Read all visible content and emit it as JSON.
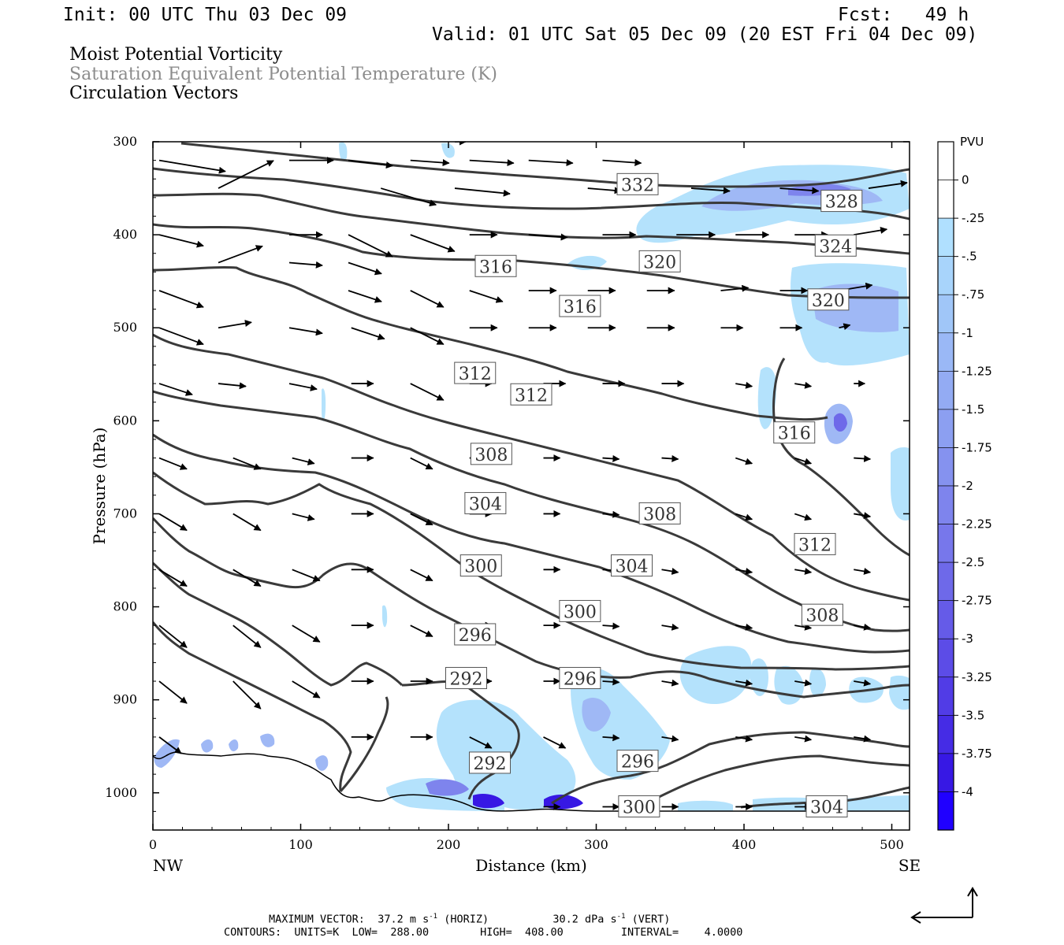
{
  "header": {
    "init": "Init: 00 UTC Thu 03 Dec 09",
    "fcst": "Fcst:   49 h",
    "valid": "Valid: 01 UTC Sat 05 Dec 09 (20 EST Fri 04 Dec 09)"
  },
  "fields": {
    "mpv": "Moist Potential Vorticity",
    "thetae": "Saturation Equivalent Potential Temperature (K)",
    "vectors": "Circulation Vectors"
  },
  "footer": {
    "max_vector_label": "MAXIMUM VECTOR:",
    "horiz_value": "37.2 m s",
    "horiz_exp": "-1",
    "horiz_tag": "(HORIZ)",
    "vert_value": "30.2 dPa s",
    "vert_exp": "-1",
    "vert_tag": "(VERT)",
    "contours": "CONTOURS:  UNITS=K  LOW=  288.00        HIGH=  408.00         INTERVAL=    4.0000"
  },
  "chart_data": {
    "type": "contour",
    "xlabel": "Distance (km)",
    "ylabel": "Pressure (hPa)",
    "x_endpoints": {
      "left": "NW",
      "right": "SE"
    },
    "xlim": [
      0,
      512
    ],
    "ylim": [
      1040,
      300
    ],
    "x_ticks": [
      0,
      100,
      200,
      300,
      400,
      500
    ],
    "y_ticks": [
      300,
      400,
      500,
      600,
      700,
      800,
      900,
      1000
    ],
    "contour_labels": [
      {
        "text": "332",
        "x": 328,
        "p": 346
      },
      {
        "text": "328",
        "x": 466,
        "p": 364
      },
      {
        "text": "324",
        "x": 462,
        "p": 412
      },
      {
        "text": "320",
        "x": 343,
        "p": 429
      },
      {
        "text": "320",
        "x": 457,
        "p": 470
      },
      {
        "text": "316",
        "x": 232,
        "p": 434
      },
      {
        "text": "316",
        "x": 289,
        "p": 477
      },
      {
        "text": "316",
        "x": 434,
        "p": 613
      },
      {
        "text": "312",
        "x": 218,
        "p": 549
      },
      {
        "text": "312",
        "x": 256,
        "p": 572
      },
      {
        "text": "312",
        "x": 448,
        "p": 733
      },
      {
        "text": "308",
        "x": 229,
        "p": 636
      },
      {
        "text": "308",
        "x": 343,
        "p": 700
      },
      {
        "text": "308",
        "x": 453,
        "p": 809
      },
      {
        "text": "304",
        "x": 225,
        "p": 689
      },
      {
        "text": "304",
        "x": 324,
        "p": 756
      },
      {
        "text": "304",
        "x": 456,
        "p": 1015
      },
      {
        "text": "300",
        "x": 222,
        "p": 756
      },
      {
        "text": "300",
        "x": 289,
        "p": 805
      },
      {
        "text": "300",
        "x": 329,
        "p": 1015
      },
      {
        "text": "296",
        "x": 218,
        "p": 830
      },
      {
        "text": "296",
        "x": 289,
        "p": 877
      },
      {
        "text": "296",
        "x": 328,
        "p": 966
      },
      {
        "text": "292",
        "x": 212,
        "p": 877
      },
      {
        "text": "292",
        "x": 228,
        "p": 968
      }
    ],
    "colorbar": {
      "title": "PVU",
      "levels": [
        "0",
        "-.25",
        "-.5",
        "-.75",
        "-1",
        "-1.25",
        "-1.5",
        "-1.75",
        "-2",
        "-2.25",
        "-2.5",
        "-2.75",
        "-3",
        "-3.25",
        "-3.5",
        "-3.75",
        "-4"
      ],
      "colors": [
        "#ffffff",
        "#ffffff",
        "#b0e0ff",
        "#a8d4fb",
        "#a0c6f8",
        "#9ab8f6",
        "#93abf3",
        "#8c9ff1",
        "#8592ef",
        "#7e84ed",
        "#7777eb",
        "#6e69e9",
        "#655be8",
        "#5c4ce7",
        "#513ce6",
        "#452ce5",
        "#3718e4",
        "#2000ff"
      ]
    },
    "contour_units": "K",
    "contour_low": 288.0,
    "contour_high": 408.0,
    "contour_interval": 4.0,
    "vectors_per_level": "arrows sampled every ~40 km at 50 hPa spacing"
  }
}
